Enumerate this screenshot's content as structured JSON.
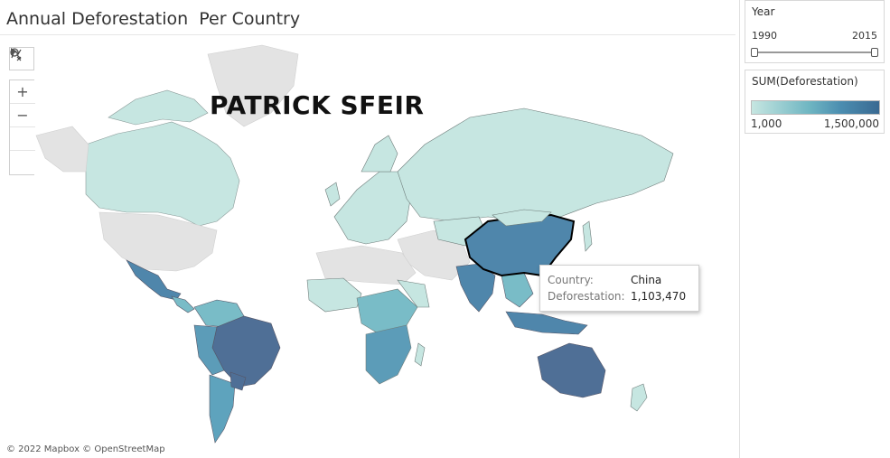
{
  "header": {
    "title": "Annual Deforestation  Per Country"
  },
  "watermark": "PATRICK SFEIR",
  "attribution": "© 2022 Mapbox © OpenStreetMap",
  "map_tools": {
    "search_icon": "magnifier-icon",
    "zoom_in": "+",
    "zoom_out": "−",
    "reset_icon": "pin-reset-icon",
    "expand_icon": "play-triangle-icon"
  },
  "tooltip": {
    "country_key": "Country:",
    "country_value": "China",
    "deforestation_key": "Deforestation:",
    "deforestation_value": "1,103,470"
  },
  "filters": {
    "year": {
      "title": "Year",
      "min": "1990",
      "max": "2015"
    }
  },
  "legend": {
    "title": "SUM(Deforestation)",
    "min_label": "1,000",
    "max_label": "1,500,000",
    "color_low": "#c6e6e1",
    "color_high": "#3a6a92"
  },
  "colors": {
    "no_data": "#e3e3e3",
    "low": "#c6e6e1",
    "mid": "#79bcc7",
    "high": "#4f86ab",
    "selected_outline": "#000000"
  }
}
